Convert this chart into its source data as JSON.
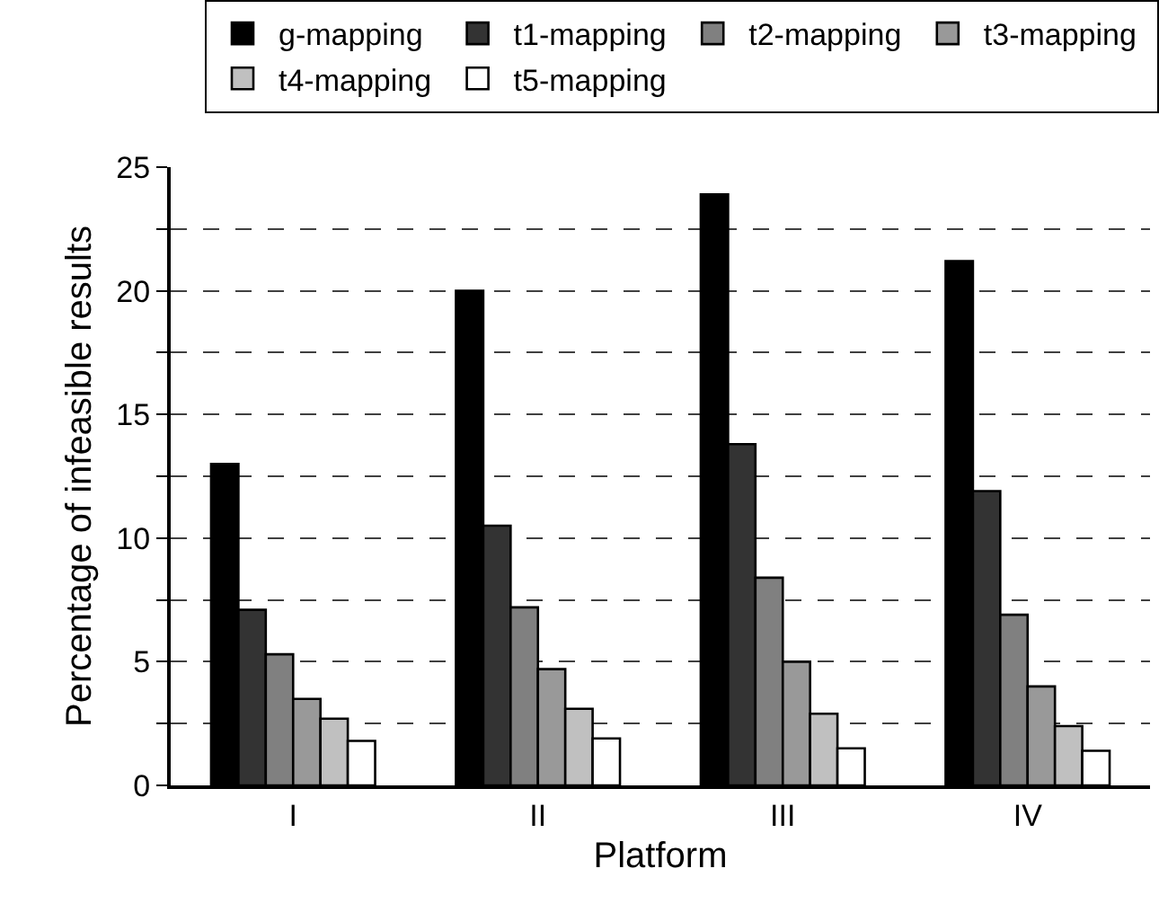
{
  "chart_data": {
    "type": "bar",
    "xlabel": "Platform",
    "ylabel": "Percentage of infeasible results",
    "categories": [
      "I",
      "II",
      "III",
      "IV"
    ],
    "series": [
      {
        "name": "g-mapping",
        "color": "#000000",
        "values": [
          13.0,
          20.0,
          23.9,
          21.2
        ]
      },
      {
        "name": "t1-mapping",
        "color": "#333333",
        "values": [
          7.1,
          10.5,
          13.8,
          11.9
        ]
      },
      {
        "name": "t2-mapping",
        "color": "#808080",
        "values": [
          5.3,
          7.2,
          8.4,
          6.9
        ]
      },
      {
        "name": "t3-mapping",
        "color": "#999999",
        "values": [
          3.5,
          4.7,
          5.0,
          4.0
        ]
      },
      {
        "name": "t4-mapping",
        "color": "#c0c0c0",
        "values": [
          2.7,
          3.1,
          2.9,
          2.4
        ]
      },
      {
        "name": "t5-mapping",
        "color": "#ffffff",
        "values": [
          1.8,
          1.9,
          1.5,
          1.4
        ]
      }
    ],
    "ylim": [
      0,
      25
    ],
    "yticks": [
      0,
      {
        "value": 2.5,
        "label": null
      },
      5,
      {
        "value": 7.5,
        "label": null
      },
      10,
      {
        "value": 12.5,
        "label": null
      },
      15,
      {
        "value": 17.5,
        "label": null
      },
      20,
      {
        "value": 22.5,
        "label": null
      },
      25
    ],
    "grid": "y",
    "legend": "top",
    "line_style": "dashed"
  }
}
